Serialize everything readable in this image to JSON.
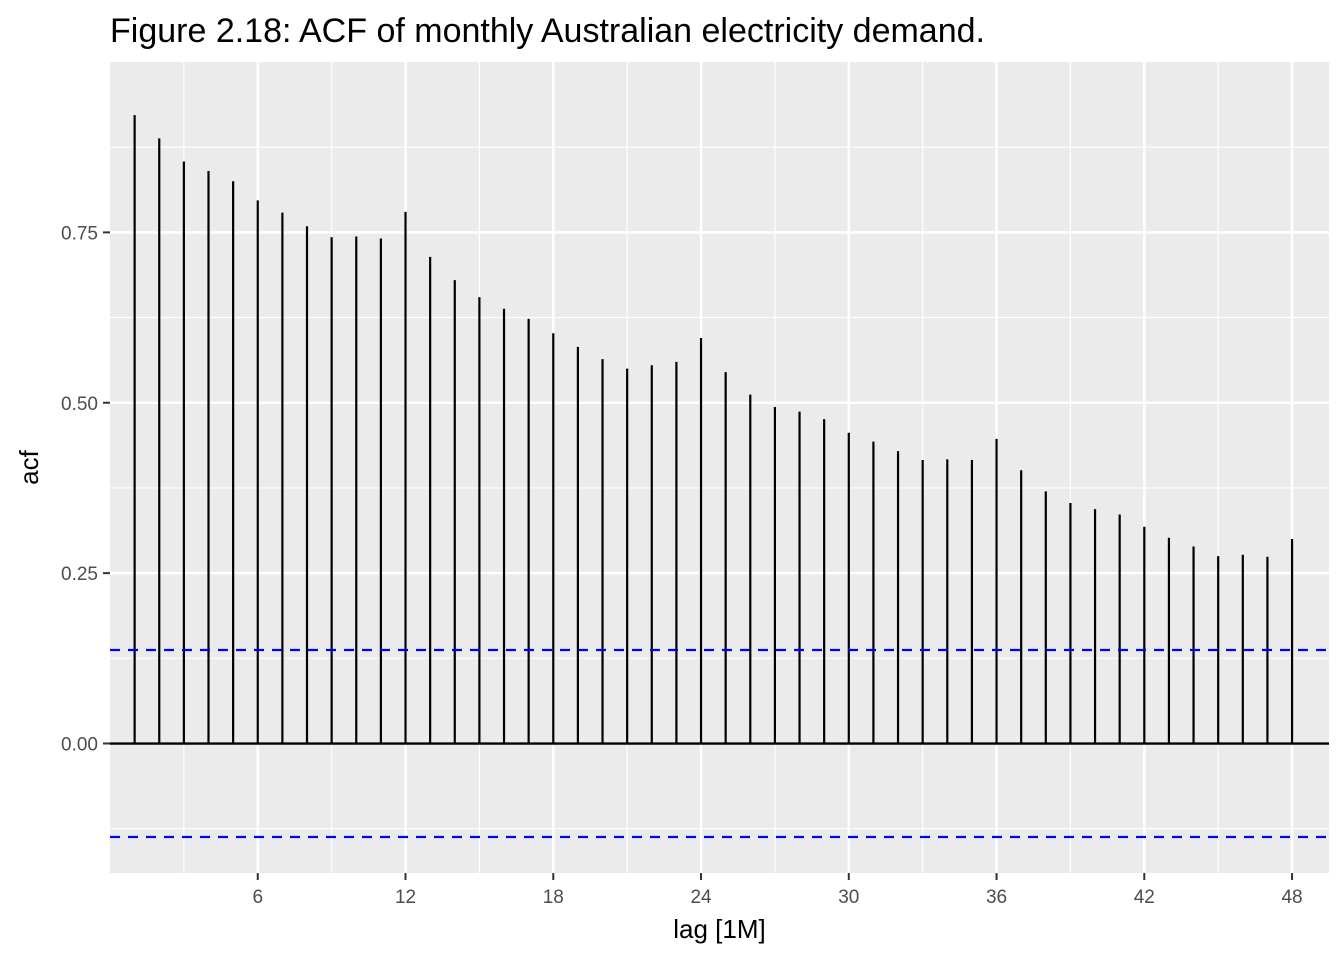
{
  "chart_data": {
    "type": "bar",
    "title": "Figure 2.18: ACF of monthly Australian electricity demand.",
    "xlabel": "lag [1M]",
    "ylabel": "acf",
    "x": [
      1,
      2,
      3,
      4,
      5,
      6,
      7,
      8,
      9,
      10,
      11,
      12,
      13,
      14,
      15,
      16,
      17,
      18,
      19,
      20,
      21,
      22,
      23,
      24,
      25,
      26,
      27,
      28,
      29,
      30,
      31,
      32,
      33,
      34,
      35,
      36,
      37,
      38,
      39,
      40,
      41,
      42,
      43,
      44,
      45,
      46,
      47,
      48
    ],
    "values": [
      0.922,
      0.888,
      0.854,
      0.84,
      0.825,
      0.797,
      0.779,
      0.759,
      0.743,
      0.744,
      0.741,
      0.78,
      0.714,
      0.68,
      0.655,
      0.638,
      0.623,
      0.602,
      0.582,
      0.564,
      0.55,
      0.555,
      0.56,
      0.595,
      0.545,
      0.512,
      0.494,
      0.487,
      0.476,
      0.456,
      0.443,
      0.429,
      0.416,
      0.417,
      0.416,
      0.447,
      0.401,
      0.37,
      0.353,
      0.344,
      0.336,
      0.318,
      0.302,
      0.289,
      0.275,
      0.277,
      0.274,
      0.3
    ],
    "xlim": [
      0,
      49.5
    ],
    "ylim": [
      -0.19,
      1.0
    ],
    "x_ticks": [
      6,
      12,
      18,
      24,
      30,
      36,
      42,
      48
    ],
    "x_tick_labels": [
      "6",
      "12",
      "18",
      "24",
      "30",
      "36",
      "42",
      "48"
    ],
    "y_ticks": [
      0,
      0.25,
      0.5,
      0.75
    ],
    "y_tick_labels": [
      "0.00",
      "0.25",
      "0.50",
      "0.75"
    ],
    "confidence_bound": 0.1372,
    "grid": true,
    "colors": {
      "panel_background": "#ebebeb",
      "grid": "#ffffff",
      "bars": "#000000",
      "confidence_lines": "#0000ff",
      "tick_labels": "#4d4d4d"
    }
  }
}
